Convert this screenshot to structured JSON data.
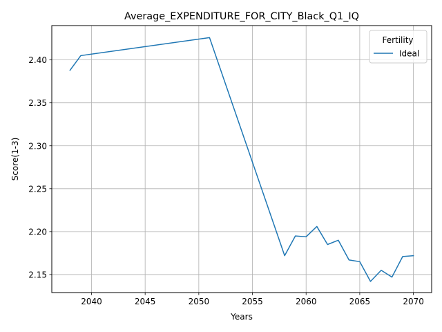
{
  "chart_data": {
    "type": "line",
    "title": "Average_EXPENDITURE_FOR_CITY_Black_Q1_IQ",
    "xlabel": "Years",
    "ylabel": "Score(1-3)",
    "xlim": [
      2036.3,
      2071.7
    ],
    "ylim": [
      2.129,
      2.44
    ],
    "xticks": [
      2040,
      2045,
      2050,
      2055,
      2060,
      2065,
      2070
    ],
    "yticks": [
      2.15,
      2.2,
      2.25,
      2.3,
      2.35,
      2.4
    ],
    "grid": true,
    "legend": {
      "title": "Fertility",
      "placement": "top-right"
    },
    "series": [
      {
        "name": "Ideal",
        "color": "#1f77b4",
        "x": [
          2038,
          2039,
          2051,
          2058,
          2059,
          2060,
          2061,
          2062,
          2063,
          2064,
          2065,
          2066,
          2067,
          2068,
          2069,
          2070
        ],
        "y": [
          2.388,
          2.405,
          2.426,
          2.172,
          2.195,
          2.194,
          2.206,
          2.185,
          2.19,
          2.167,
          2.165,
          2.142,
          2.155,
          2.147,
          2.171,
          2.172
        ]
      }
    ]
  }
}
